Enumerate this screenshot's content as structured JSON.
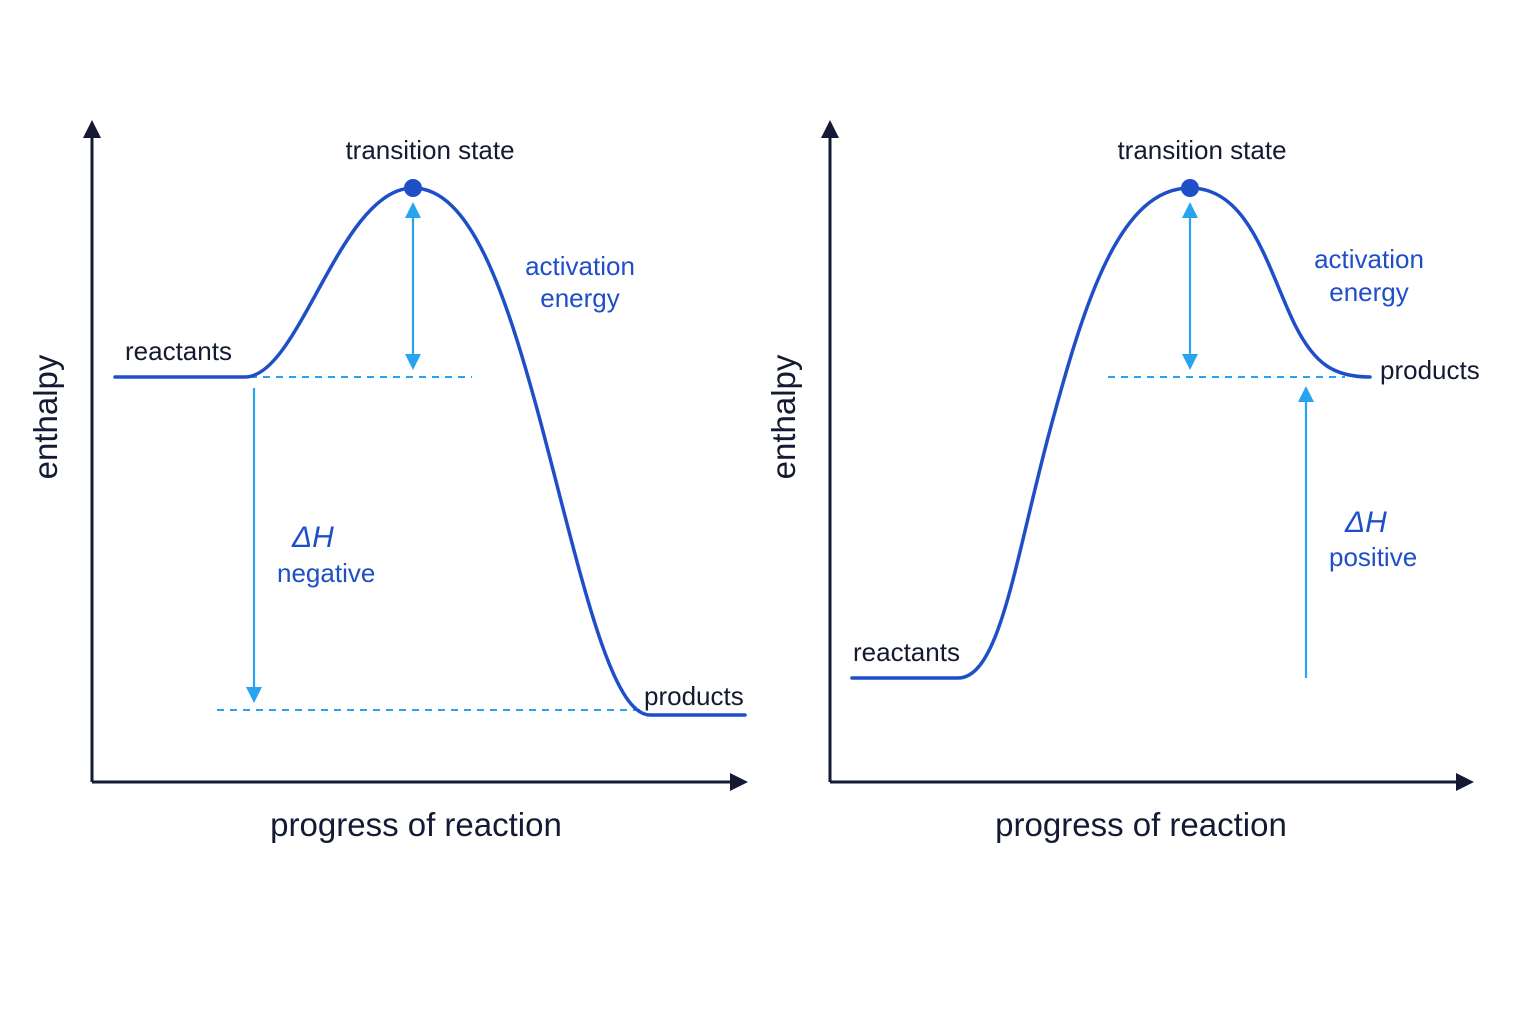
{
  "diagrams": [
    {
      "id": "exothermic",
      "y_label": "enthalpy",
      "x_label": "progress of reaction",
      "transition_state_label": "transition state",
      "reactants_label": "reactants",
      "products_label": "products",
      "activation_label_line1": "activation",
      "activation_label_line2": "energy",
      "delta_symbol": "ΔH",
      "delta_sign_label": "negative"
    },
    {
      "id": "endothermic",
      "y_label": "enthalpy",
      "x_label": "progress of reaction",
      "transition_state_label": "transition state",
      "reactants_label": "reactants",
      "products_label": "products",
      "activation_label_line1": "activation",
      "activation_label_line2": "energy",
      "delta_symbol": "ΔH",
      "delta_sign_label": "positive"
    }
  ],
  "colors": {
    "axis": "#141a33",
    "curve": "#1f4fc8",
    "guide": "#2aa3ef",
    "label_accent": "#1f4fc8"
  }
}
